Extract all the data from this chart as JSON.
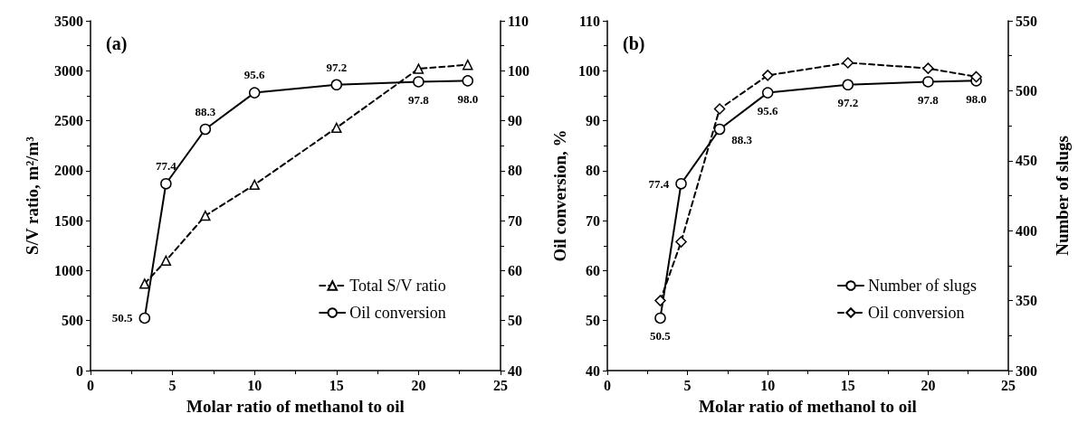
{
  "chart_data": [
    {
      "type": "line",
      "title": "(a)",
      "xlabel": "Molar ratio of methanol to oil",
      "ylabel": "S/V ratio, m²/m³",
      "x": [
        3.3,
        4.6,
        7,
        10,
        15,
        20,
        23
      ],
      "series": [
        {
          "name": "Total S/V ratio",
          "color": "#000000",
          "marker": "triangle",
          "line_style": "dashed",
          "values": [
            870,
            1100,
            1550,
            1860,
            2430,
            3020,
            3060
          ]
        },
        {
          "name": "Oil conversion",
          "color": "#000000",
          "marker": "circle",
          "line_style": "solid",
          "axis": "y2",
          "values": [
            50.5,
            77.4,
            88.3,
            95.6,
            97.2,
            97.8,
            98.0
          ],
          "value_labels": [
            "50.5",
            "77.4",
            "88.3",
            "95.6",
            "97.2",
            "97.8",
            "98.0"
          ]
        }
      ],
      "xlim": [
        0,
        25
      ],
      "xticks": [
        0,
        5,
        10,
        15,
        20,
        25
      ],
      "ylim": [
        0,
        3500
      ],
      "yticks": [
        0,
        500,
        1000,
        1500,
        2000,
        2500,
        3000,
        3500
      ],
      "y2lim": [
        40,
        110
      ],
      "y2ticks": [
        40,
        50,
        60,
        70,
        80,
        90,
        100,
        110
      ],
      "grid": false,
      "legend": "bottom right"
    },
    {
      "type": "line",
      "title": "(b)",
      "xlabel": "Molar ratio of methanol to oil",
      "ylabel": "Oil conversion, %",
      "y2label": "Number of slugs",
      "x": [
        3.3,
        4.6,
        7,
        10,
        15,
        20,
        23
      ],
      "series": [
        {
          "name": "Number of slugs",
          "color": "#000000",
          "marker": "circle",
          "line_style": "solid",
          "values": [
            50.5,
            77.4,
            88.3,
            95.6,
            97.2,
            97.8,
            98.0
          ],
          "value_labels": [
            "50.5",
            "77.4",
            "88.3",
            "95.6",
            "97.2",
            "97.8",
            "98.0"
          ]
        },
        {
          "name": "Oil conversion",
          "color": "#000000",
          "marker": "diamond",
          "line_style": "dashed",
          "axis": "y2",
          "values": [
            350,
            392,
            487,
            511,
            520,
            516,
            510
          ]
        }
      ],
      "xlim": [
        0,
        25
      ],
      "xticks": [
        0,
        5,
        10,
        15,
        20,
        25
      ],
      "ylim": [
        40,
        110
      ],
      "yticks": [
        40,
        50,
        60,
        70,
        80,
        90,
        100,
        110
      ],
      "y2lim": [
        300,
        550
      ],
      "y2ticks": [
        300,
        350,
        400,
        450,
        500,
        550
      ],
      "grid": false,
      "legend": "bottom right"
    }
  ]
}
